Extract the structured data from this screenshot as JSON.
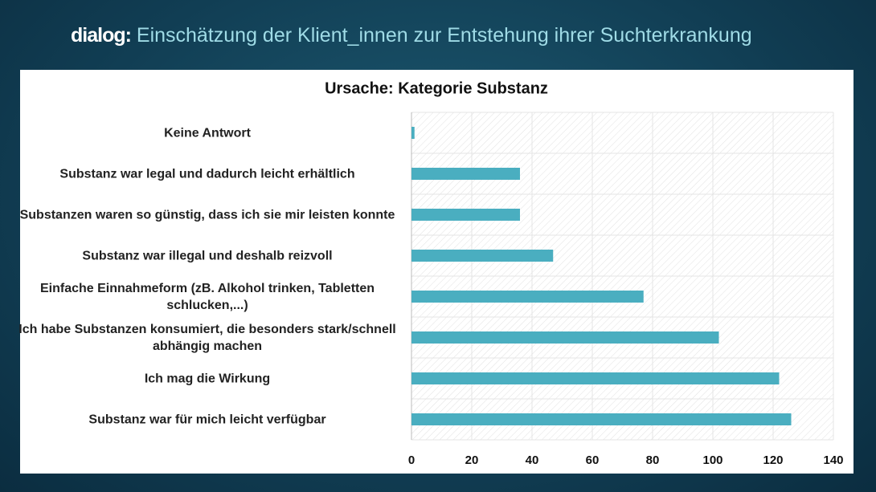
{
  "header": {
    "brand": "dialog:",
    "title": "Einschätzung der Klient_innen zur Entstehung ihrer Suchterkrankung"
  },
  "chart_data": {
    "type": "barh",
    "title": "Ursache: Kategorie Substanz",
    "categories": [
      "Keine Antwort",
      "Substanz war legal und dadurch leicht erhältlich",
      "Substanzen waren so günstig, dass ich sie mir leisten konnte",
      "Substanz war illegal und deshalb reizvoll",
      "Einfache Einnahmeform (zB. Alkohol trinken, Tabletten schlucken,...)",
      "Ich habe Substanzen konsumiert, die besonders stark/schnell abhängig machen",
      "Ich mag die Wirkung",
      "Substanz war für mich leicht verfügbar"
    ],
    "values": [
      1,
      36,
      36,
      47,
      77,
      102,
      122,
      126
    ],
    "color": "#4aaec0",
    "xlim": [
      0,
      140
    ],
    "xticks": [
      0,
      20,
      40,
      60,
      80,
      100,
      120,
      140
    ],
    "grid": true
  }
}
